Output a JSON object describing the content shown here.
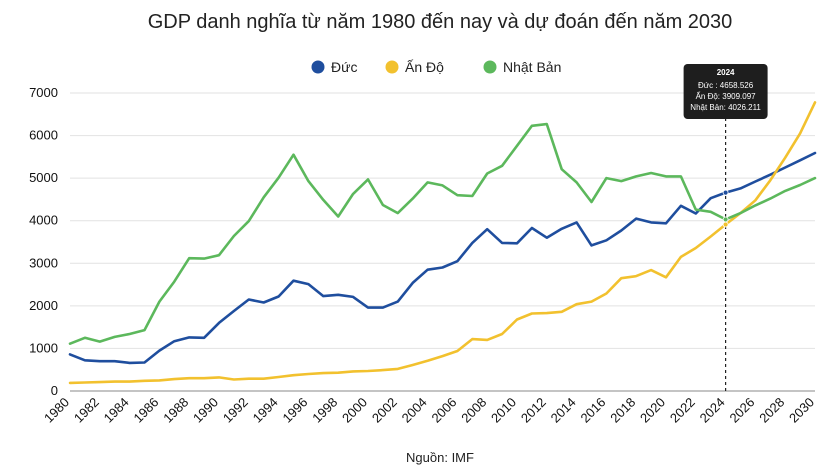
{
  "chart_data": {
    "type": "line",
    "title": "GDP danh nghĩa từ năm 1980 đến nay và dự đoán đến năm 2030",
    "xlabel": "",
    "ylabel": "",
    "source": "Nguồn: IMF",
    "xlim": [
      1980,
      2030
    ],
    "ylim": [
      0,
      7000
    ],
    "yticks": [
      0,
      1000,
      2000,
      3000,
      4000,
      5000,
      6000,
      7000
    ],
    "xticks": [
      1980,
      1982,
      1984,
      1986,
      1988,
      1990,
      1992,
      1994,
      1996,
      1998,
      2000,
      2002,
      2004,
      2006,
      2008,
      2010,
      2012,
      2014,
      2016,
      2018,
      2020,
      2022,
      2024,
      2026,
      2028,
      2030
    ],
    "grid": true,
    "legend": "top-center",
    "x": [
      1980,
      1981,
      1982,
      1983,
      1984,
      1985,
      1986,
      1987,
      1988,
      1989,
      1990,
      1991,
      1992,
      1993,
      1994,
      1995,
      1996,
      1997,
      1998,
      1999,
      2000,
      2001,
      2002,
      2003,
      2004,
      2005,
      2006,
      2007,
      2008,
      2009,
      2010,
      2011,
      2012,
      2013,
      2014,
      2015,
      2016,
      2017,
      2018,
      2019,
      2020,
      2021,
      2022,
      2023,
      2024,
      2025,
      2026,
      2027,
      2028,
      2029,
      2030
    ],
    "series": [
      {
        "name": "Đức",
        "color": "#1f4e9e",
        "values": [
          860,
          720,
          700,
          700,
          660,
          670,
          950,
          1170,
          1260,
          1250,
          1600,
          1880,
          2150,
          2080,
          2220,
          2590,
          2510,
          2230,
          2260,
          2210,
          1960,
          1960,
          2100,
          2540,
          2850,
          2900,
          3050,
          3480,
          3800,
          3480,
          3470,
          3830,
          3600,
          3810,
          3960,
          3420,
          3540,
          3770,
          4050,
          3960,
          3940,
          4350,
          4170,
          4530,
          4660,
          4760,
          4920,
          5080,
          5250,
          5420,
          5590
        ]
      },
      {
        "name": "Ấn Độ",
        "color": "#f2c12e",
        "values": [
          190,
          200,
          210,
          220,
          220,
          240,
          250,
          280,
          300,
          300,
          320,
          270,
          290,
          290,
          330,
          370,
          400,
          420,
          430,
          460,
          470,
          490,
          520,
          610,
          710,
          820,
          940,
          1220,
          1200,
          1340,
          1680,
          1820,
          1830,
          1860,
          2040,
          2100,
          2290,
          2650,
          2700,
          2840,
          2670,
          3150,
          3360,
          3630,
          3910,
          4180,
          4480,
          4950,
          5480,
          6050,
          6780
        ]
      },
      {
        "name": "Nhật Bản",
        "color": "#5cb85c",
        "values": [
          1110,
          1250,
          1160,
          1270,
          1340,
          1430,
          2100,
          2570,
          3120,
          3110,
          3190,
          3640,
          3990,
          4550,
          5010,
          5550,
          4930,
          4490,
          4100,
          4630,
          4970,
          4370,
          4180,
          4520,
          4900,
          4830,
          4600,
          4580,
          5110,
          5290,
          5760,
          6230,
          6270,
          5210,
          4900,
          4440,
          5000,
          4930,
          5040,
          5120,
          5040,
          5040,
          4260,
          4210,
          4030,
          4180,
          4360,
          4520,
          4700,
          4840,
          5000
        ]
      }
    ],
    "annotation": {
      "x": 2024,
      "tooltip_title": "2024",
      "tooltip_lines": [
        "Đức : 4658.526",
        "Ấn Độ: 3909.097",
        "Nhật Bản: 4026.211"
      ]
    }
  }
}
